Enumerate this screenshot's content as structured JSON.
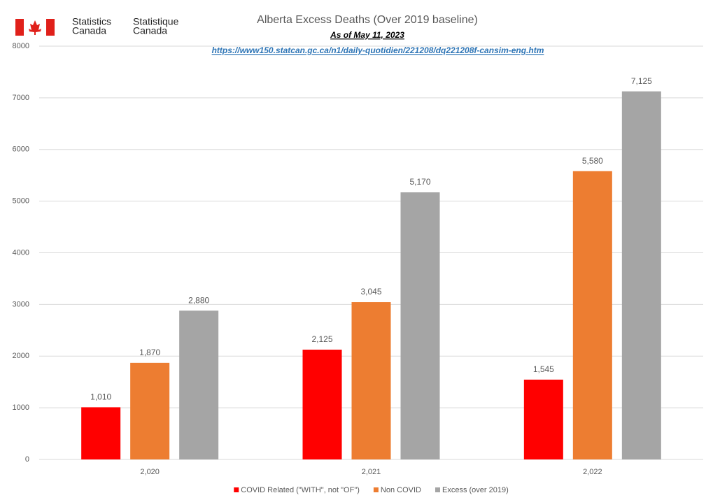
{
  "chart_data": {
    "type": "bar",
    "logo_text": [
      [
        "Statistics",
        "Canada"
      ],
      [
        "Statistique",
        "Canada"
      ]
    ],
    "title": "Alberta Excess Deaths (Over 2019 baseline)",
    "subtitle": "As of May 11, 2023",
    "source_url": "https://www150.statcan.gc.ca/n1/daily-quotidien/221208/dq221208f-cansim-eng.htm",
    "categories": [
      "2,020",
      "2,021",
      "2,022"
    ],
    "series": [
      {
        "name": "COVID Related (\"WITH\", not \"OF\")",
        "color": "#ff0000",
        "values": [
          1010,
          2125,
          1545
        ],
        "value_labels": [
          "1,010",
          "2,125",
          "1,545"
        ]
      },
      {
        "name": "Non COVID",
        "color": "#ed7d31",
        "values": [
          1870,
          3045,
          5580
        ],
        "value_labels": [
          "1,870",
          "3,045",
          "5,580"
        ]
      },
      {
        "name": "Excess (over 2019)",
        "color": "#a5a5a5",
        "values": [
          2880,
          5170,
          7125
        ],
        "value_labels": [
          "2,880",
          "5,170",
          "7,125"
        ]
      }
    ],
    "ylim": [
      0,
      8000
    ],
    "yticks": [
      0,
      1000,
      2000,
      3000,
      4000,
      5000,
      6000,
      7000,
      8000
    ],
    "grid": true,
    "legend": "bottom"
  }
}
